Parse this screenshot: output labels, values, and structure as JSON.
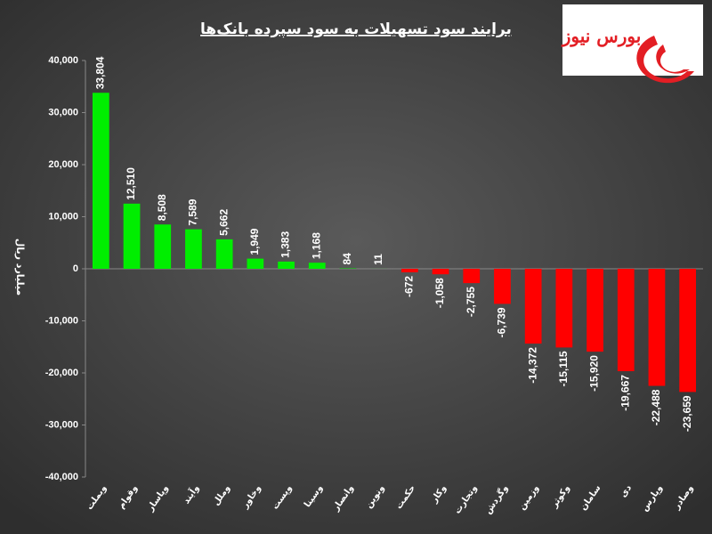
{
  "chart_data": {
    "type": "bar",
    "title": "برایند سود تسهیلات به سود سپرده بانک‌ها",
    "logo": "بورس نیوز",
    "y_label": "میلیارد ریال",
    "categories": [
      "وبملت",
      "وقوام",
      "وپاسار",
      "وآیند",
      "وملل",
      "وخاور",
      "وپست",
      "وسینا",
      "وانصار",
      "ونوین",
      "حکمت",
      "وکار",
      "وتجارت",
      "وگردش",
      "وزمین",
      "وکوثر",
      "سامان",
      "دی",
      "وپارس",
      "وصادر"
    ],
    "values": [
      33804,
      12510,
      8508,
      7589,
      5662,
      1949,
      1383,
      1168,
      84,
      11,
      -672,
      -1058,
      -2755,
      -6739,
      -14372,
      -15115,
      -15920,
      -19667,
      -22488,
      -23659
    ],
    "value_labels": [
      "33,804",
      "12,510",
      "8,508",
      "7,589",
      "5,662",
      "1,949",
      "1,383",
      "1,168",
      "84",
      "11",
      "-672",
      "-1,058",
      "-2,755",
      "-6,739",
      "-14,372",
      "-15,115",
      "-15,920",
      "-19,667",
      "-22,488",
      "-23,659"
    ],
    "positive_color": "#00ee00",
    "negative_color": "#ff0000",
    "ylim": [
      -40000,
      40000
    ],
    "yticks": [
      {
        "value": -40000,
        "label": "-40,000"
      },
      {
        "value": -30000,
        "label": "-30,000"
      },
      {
        "value": -20000,
        "label": "-20,000"
      },
      {
        "value": -10000,
        "label": "-10,000"
      },
      0,
      {
        "value": 10000,
        "label": "10,000"
      },
      {
        "value": 20000,
        "label": "20,000"
      },
      {
        "value": 30000,
        "label": "30,000"
      },
      {
        "value": 40000,
        "label": "40,000"
      }
    ],
    "grid": false
  }
}
